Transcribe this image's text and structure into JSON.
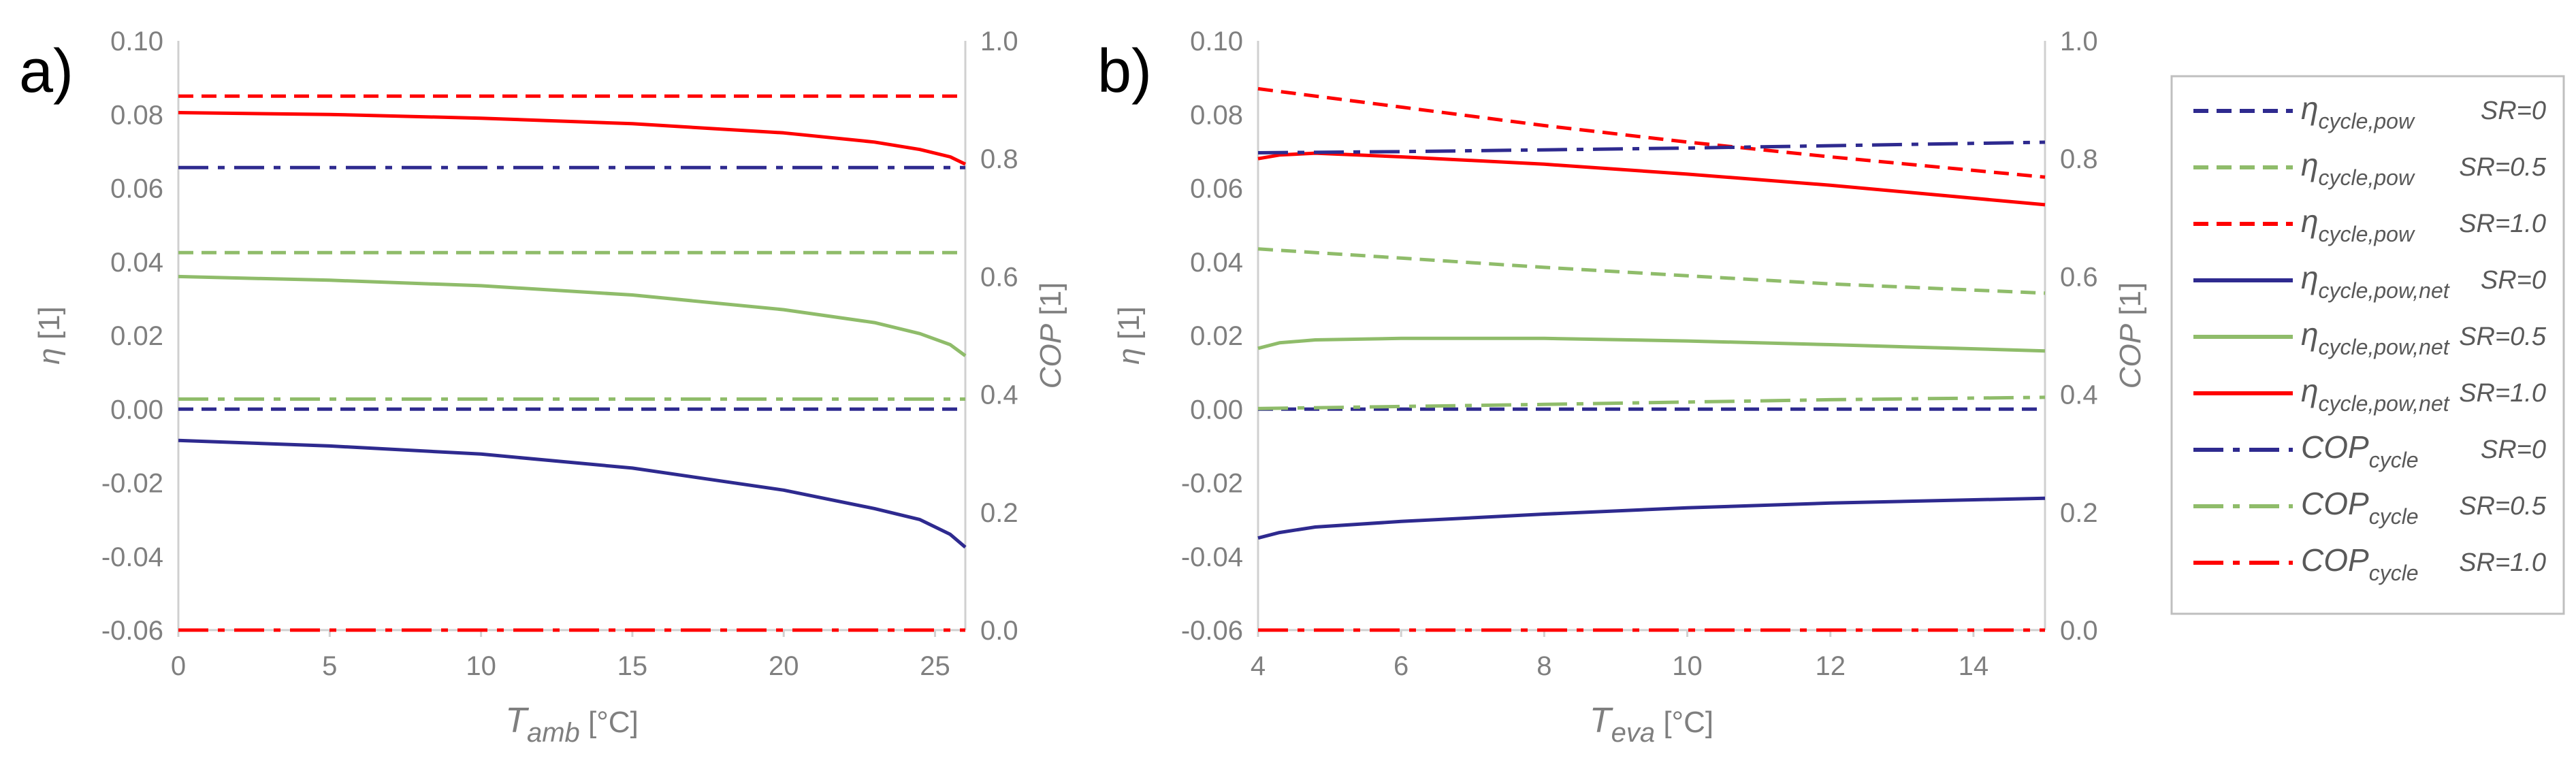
{
  "chart_data": [
    {
      "type": "line",
      "panel_label": "a)",
      "xlabel": {
        "main": "T",
        "sub": "amb",
        "unit": " [°C]"
      },
      "ylabel": {
        "main": "η",
        "unit": " [1]"
      },
      "y2label": {
        "main": "COP",
        "unit": " [1]"
      },
      "xlim": [
        0,
        26
      ],
      "ylim": [
        -0.06,
        0.1
      ],
      "y2lim": [
        0,
        1.0
      ],
      "xticks": [
        "0",
        "5",
        "10",
        "15",
        "20",
        "25"
      ],
      "yticks": [
        "-0.06",
        "-0.04",
        "-0.02",
        "0.00",
        "0.02",
        "0.04",
        "0.06",
        "0.08",
        "0.10"
      ],
      "y2ticks": [
        "0.0",
        "0.2",
        "0.4",
        "0.6",
        "0.8",
        "1.0"
      ],
      "grid": false,
      "series": [
        {
          "key": "eta_pow_sr0",
          "axis": "y",
          "style": "dash",
          "color": "#2e2a8f",
          "x": [
            0,
            26
          ],
          "y": [
            0.0,
            0.0
          ]
        },
        {
          "key": "eta_pow_sr05",
          "axis": "y",
          "style": "dash",
          "color": "#8fbc6a",
          "x": [
            0,
            26
          ],
          "y": [
            0.0425,
            0.0425
          ]
        },
        {
          "key": "eta_pow_sr1",
          "axis": "y",
          "style": "dash",
          "color": "#ff0000",
          "x": [
            0,
            26
          ],
          "y": [
            0.085,
            0.085
          ]
        },
        {
          "key": "eta_net_sr0",
          "axis": "y",
          "style": "solid",
          "color": "#2e2a8f",
          "x": [
            0,
            5,
            10,
            15,
            20,
            23,
            24.5,
            25.5,
            26
          ],
          "y": [
            -0.0085,
            -0.01,
            -0.0122,
            -0.016,
            -0.022,
            -0.027,
            -0.03,
            -0.034,
            -0.0375
          ]
        },
        {
          "key": "eta_net_sr05",
          "axis": "y",
          "style": "solid",
          "color": "#8fbc6a",
          "x": [
            0,
            5,
            10,
            15,
            20,
            23,
            24.5,
            25.5,
            26
          ],
          "y": [
            0.036,
            0.035,
            0.0335,
            0.031,
            0.027,
            0.0235,
            0.0205,
            0.0175,
            0.0145
          ]
        },
        {
          "key": "eta_net_sr1",
          "axis": "y",
          "style": "solid",
          "color": "#ff0000",
          "x": [
            0,
            5,
            10,
            15,
            20,
            23,
            24.5,
            25.5,
            26
          ],
          "y": [
            0.0805,
            0.08,
            0.079,
            0.0775,
            0.075,
            0.0725,
            0.0705,
            0.0685,
            0.0665
          ]
        },
        {
          "key": "cop_sr0",
          "axis": "y2",
          "style": "dashdot",
          "color": "#2e2a8f",
          "x": [
            0,
            26
          ],
          "y": [
            0.785,
            0.785
          ]
        },
        {
          "key": "cop_sr05",
          "axis": "y2",
          "style": "dashdot",
          "color": "#8fbc6a",
          "x": [
            0,
            26
          ],
          "y": [
            0.392,
            0.392
          ]
        },
        {
          "key": "cop_sr1",
          "axis": "y2",
          "style": "dashdot",
          "color": "#ff0000",
          "x": [
            0,
            26
          ],
          "y": [
            0.0,
            0.0
          ]
        }
      ]
    },
    {
      "type": "line",
      "panel_label": "b)",
      "xlabel": {
        "main": "T",
        "sub": "eva",
        "unit": " [°C]"
      },
      "ylabel": {
        "main": "η",
        "unit": " [1]"
      },
      "y2label": {
        "main": "COP",
        "unit": " [1]"
      },
      "xlim": [
        4,
        15
      ],
      "ylim": [
        -0.06,
        0.1
      ],
      "y2lim": [
        0,
        1.0
      ],
      "xticks": [
        "4",
        "6",
        "8",
        "10",
        "12",
        "14"
      ],
      "yticks": [
        "-0.06",
        "-0.04",
        "-0.02",
        "0.00",
        "0.02",
        "0.04",
        "0.06",
        "0.08",
        "0.10"
      ],
      "y2ticks": [
        "0.0",
        "0.2",
        "0.4",
        "0.6",
        "0.8",
        "1.0"
      ],
      "grid": false,
      "series": [
        {
          "key": "eta_pow_sr0",
          "axis": "y",
          "style": "dash",
          "color": "#2e2a8f",
          "x": [
            4,
            15
          ],
          "y": [
            0.0,
            0.0
          ]
        },
        {
          "key": "eta_pow_sr05",
          "axis": "y",
          "style": "dash",
          "color": "#8fbc6a",
          "x": [
            4,
            6,
            8,
            10,
            12,
            15
          ],
          "y": [
            0.0435,
            0.041,
            0.0385,
            0.0362,
            0.034,
            0.0315
          ]
        },
        {
          "key": "eta_pow_sr1",
          "axis": "y",
          "style": "dash",
          "color": "#ff0000",
          "x": [
            4,
            6,
            8,
            10,
            12,
            15
          ],
          "y": [
            0.087,
            0.082,
            0.077,
            0.0725,
            0.0685,
            0.063
          ]
        },
        {
          "key": "eta_net_sr0",
          "axis": "y",
          "style": "solid",
          "color": "#2e2a8f",
          "x": [
            4,
            4.3,
            4.8,
            6,
            8,
            10,
            12,
            15
          ],
          "y": [
            -0.035,
            -0.0335,
            -0.032,
            -0.0305,
            -0.0285,
            -0.0268,
            -0.0255,
            -0.0242
          ]
        },
        {
          "key": "eta_net_sr05",
          "axis": "y",
          "style": "solid",
          "color": "#8fbc6a",
          "x": [
            4,
            4.3,
            4.8,
            6,
            8,
            10,
            12,
            15
          ],
          "y": [
            0.0165,
            0.018,
            0.0188,
            0.0192,
            0.0192,
            0.0185,
            0.0175,
            0.0158
          ]
        },
        {
          "key": "eta_net_sr1",
          "axis": "y",
          "style": "solid",
          "color": "#ff0000",
          "x": [
            4,
            4.3,
            4.8,
            6,
            8,
            10,
            12,
            15
          ],
          "y": [
            0.068,
            0.069,
            0.0695,
            0.0685,
            0.0665,
            0.0638,
            0.0608,
            0.0555
          ]
        },
        {
          "key": "cop_sr0",
          "axis": "y2",
          "style": "dashdot",
          "color": "#2e2a8f",
          "x": [
            4,
            6,
            8,
            10,
            12,
            15
          ],
          "y": [
            0.81,
            0.812,
            0.815,
            0.818,
            0.822,
            0.828
          ]
        },
        {
          "key": "cop_sr05",
          "axis": "y2",
          "style": "dashdot",
          "color": "#8fbc6a",
          "x": [
            4,
            8,
            12,
            15
          ],
          "y": [
            0.376,
            0.383,
            0.391,
            0.395
          ]
        },
        {
          "key": "cop_sr1",
          "axis": "y2",
          "style": "dashdot",
          "color": "#ff0000",
          "x": [
            4,
            15
          ],
          "y": [
            0.0,
            0.0
          ]
        }
      ]
    }
  ],
  "legend": {
    "placement": "right",
    "entries": [
      {
        "key": "eta_pow_sr0",
        "style": "dash",
        "color": "#2e2a8f",
        "main": "η",
        "sub": "cycle,pow",
        "sr": "SR=0"
      },
      {
        "key": "eta_pow_sr05",
        "style": "dash",
        "color": "#8fbc6a",
        "main": "η",
        "sub": "cycle,pow",
        "sr": "SR=0.5"
      },
      {
        "key": "eta_pow_sr1",
        "style": "dash",
        "color": "#ff0000",
        "main": "η",
        "sub": "cycle,pow",
        "sr": "SR=1.0"
      },
      {
        "key": "eta_net_sr0",
        "style": "solid",
        "color": "#2e2a8f",
        "main": "η",
        "sub": "cycle,pow,net",
        "sr": "SR=0"
      },
      {
        "key": "eta_net_sr05",
        "style": "solid",
        "color": "#8fbc6a",
        "main": "η",
        "sub": "cycle,pow,net",
        "sr": "SR=0.5"
      },
      {
        "key": "eta_net_sr1",
        "style": "solid",
        "color": "#ff0000",
        "main": "η",
        "sub": "cycle,pow,net",
        "sr": "SR=1.0"
      },
      {
        "key": "cop_sr0",
        "style": "dashdot",
        "color": "#2e2a8f",
        "main": "COP",
        "sub": "cycle",
        "sr": "SR=0"
      },
      {
        "key": "cop_sr05",
        "style": "dashdot",
        "color": "#8fbc6a",
        "main": "COP",
        "sub": "cycle",
        "sr": "SR=0.5"
      },
      {
        "key": "cop_sr1",
        "style": "dashdot",
        "color": "#ff0000",
        "main": "COP",
        "sub": "cycle",
        "sr": "SR=1.0"
      }
    ]
  },
  "colors": {
    "axis": "#d0d0d0",
    "tick_text": "#7f7f7f",
    "legend_border": "#bfbfbf"
  }
}
